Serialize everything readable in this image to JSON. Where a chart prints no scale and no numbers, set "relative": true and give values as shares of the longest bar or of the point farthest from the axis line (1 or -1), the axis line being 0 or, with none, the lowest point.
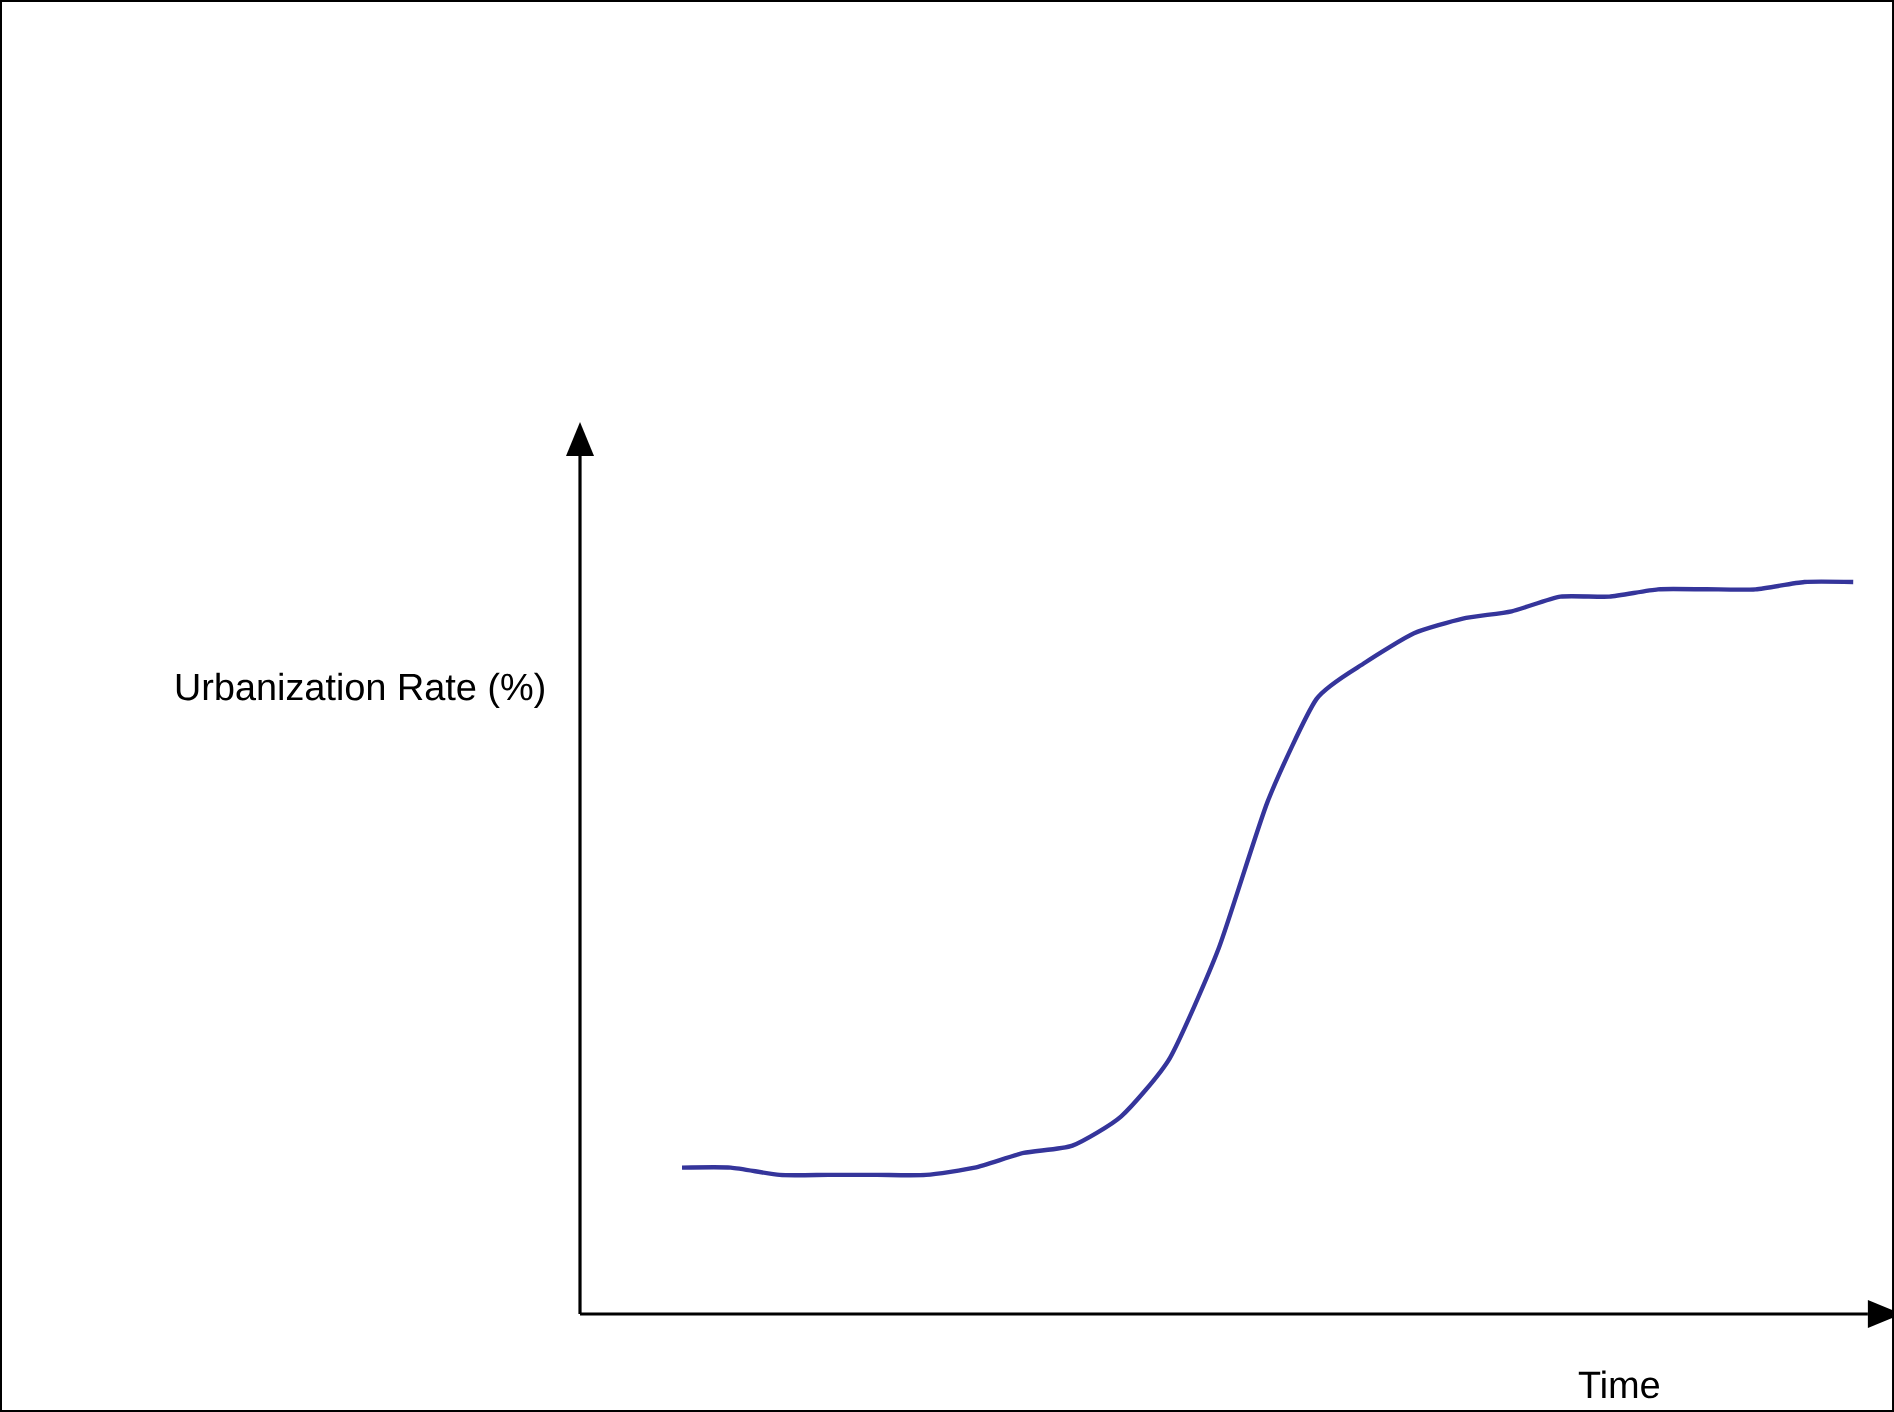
{
  "chart_data": {
    "type": "line",
    "relative": true,
    "xlabel": "Time",
    "ylabel": "Urbanization Rate (%)",
    "categories": [
      null,
      null,
      null,
      null,
      null,
      null,
      null,
      null,
      null,
      null,
      null,
      null,
      null,
      null,
      null,
      null,
      null,
      null,
      null,
      null,
      null,
      null,
      null,
      null,
      null
    ],
    "series": [
      {
        "color": "#35359b",
        "values": [
          0.2,
          0.2,
          0.19,
          0.19,
          0.19,
          0.19,
          0.2,
          0.22,
          0.23,
          0.27,
          0.35,
          0.5,
          0.7,
          0.84,
          0.89,
          0.93,
          0.95,
          0.96,
          0.98,
          0.98,
          0.99,
          0.99,
          0.99,
          1.0,
          1.0
        ]
      }
    ]
  }
}
